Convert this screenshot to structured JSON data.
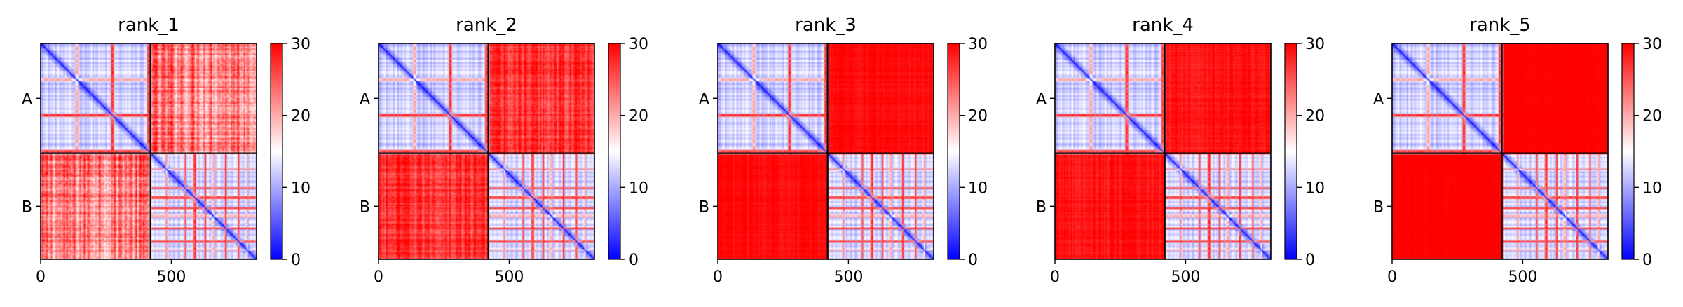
{
  "chart_data": {
    "type": "heatmap",
    "colormap": {
      "name": "bwr",
      "low": "#0000ff",
      "mid": "#ffffff",
      "high": "#ff0000"
    },
    "colorbar": {
      "range": [
        0,
        30
      ],
      "ticks": [
        "0",
        "10",
        "20",
        "30"
      ]
    },
    "grid": false,
    "x_range": [
      0,
      826
    ],
    "chain_boundary": 420,
    "x_ticks": [
      {
        "value": 0,
        "label": "0"
      },
      {
        "value": 500,
        "label": "500"
      }
    ],
    "y_ticks": [
      {
        "value": 210,
        "label": "A"
      },
      {
        "value": 623,
        "label": "B"
      }
    ],
    "panels": [
      {
        "title": "rank_1",
        "inter_chain_mean": 23,
        "inter_chain_noise": 6
      },
      {
        "title": "rank_2",
        "inter_chain_mean": 27,
        "inter_chain_noise": 3.5
      },
      {
        "title": "rank_3",
        "inter_chain_mean": 29.5,
        "inter_chain_noise": 1
      },
      {
        "title": "rank_4",
        "inter_chain_mean": 29,
        "inter_chain_noise": 1.5
      },
      {
        "title": "rank_5",
        "inter_chain_mean": 30,
        "inter_chain_noise": 0.3
      }
    ]
  }
}
